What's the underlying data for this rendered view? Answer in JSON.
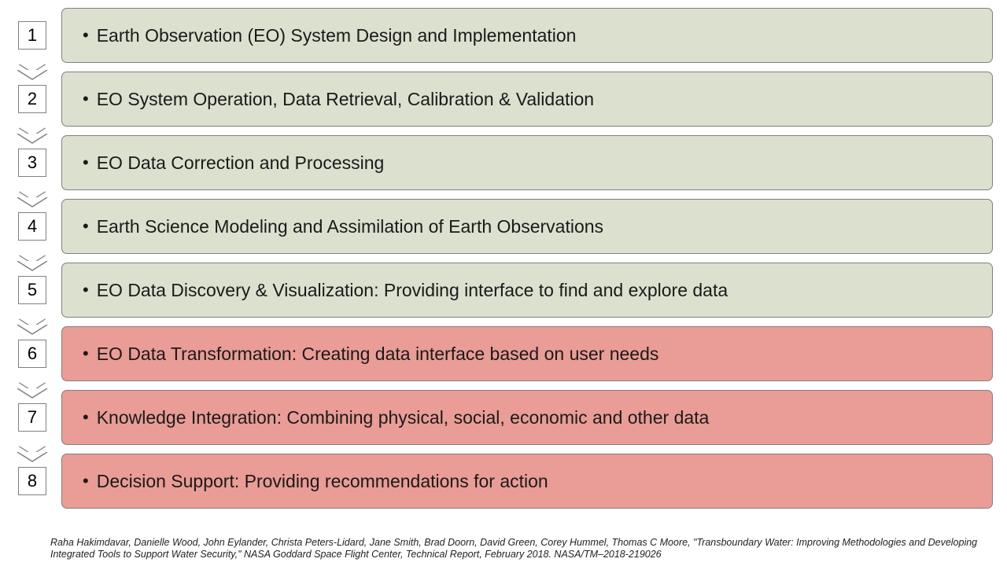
{
  "colors": {
    "green_bg": "#dce0cf",
    "red_bg": "#ea9c96",
    "border": "#808080",
    "text": "#1a1a1a",
    "page_bg": "#ffffff"
  },
  "steps": [
    {
      "num": "1",
      "text": "Earth Observation (EO) System Design and Implementation",
      "color": "green"
    },
    {
      "num": "2",
      "text": "EO System Operation, Data Retrieval, Calibration & Validation",
      "color": "green"
    },
    {
      "num": "3",
      "text": "EO Data Correction and Processing",
      "color": "green"
    },
    {
      "num": "4",
      "text": "Earth Science Modeling and Assimilation of Earth Observations",
      "color": "green"
    },
    {
      "num": "5",
      "text": "EO Data Discovery & Visualization: Providing interface to find and explore data",
      "color": "green"
    },
    {
      "num": "6",
      "text": "EO Data Transformation: Creating data interface based on user needs",
      "color": "red"
    },
    {
      "num": "7",
      "text": "Knowledge Integration: Combining physical, social, economic and other data",
      "color": "red"
    },
    {
      "num": "8",
      "text": "Decision Support: Providing recommendations for action",
      "color": "red"
    }
  ],
  "footnote": "Raha Hakimdavar, Danielle Wood, John Eylander, Christa Peters-Lidard, Jane Smith, Brad Doorn, David Green, Corey Hummel, Thomas C Moore, \"Transboundary Water: Improving Methodologies and Developing Integrated Tools to Support Water Security,\" NASA Goddard Space Flight Center, Technical Report, February 2018. NASA/TM–2018-219026"
}
